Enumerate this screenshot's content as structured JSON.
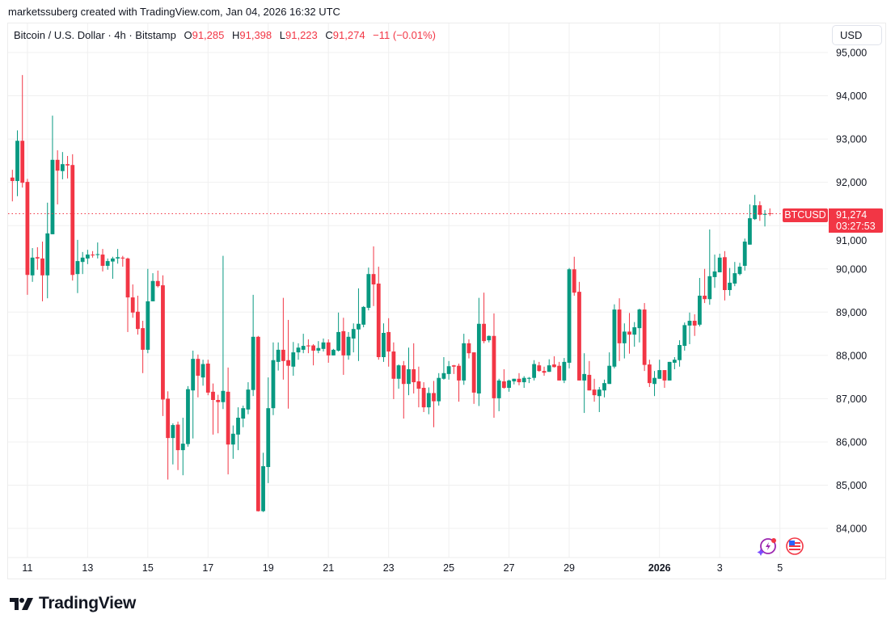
{
  "credit": "marketssuberg created with TradingView.com, Jan 04, 2026 16:32 UTC",
  "legend": {
    "title": "Bitcoin / U.S. Dollar · 4h · Bitstamp",
    "o_label": "O",
    "o": "91,285",
    "h_label": "H",
    "h": "91,398",
    "l_label": "L",
    "l": "91,223",
    "c_label": "C",
    "c": "91,274",
    "change": "−11 (−0.01%)"
  },
  "currency_button": "USD",
  "price_tag": {
    "symbol": "BTCUSD",
    "price": "91,274",
    "countdown": "03:27:53",
    "value": 91274
  },
  "branding": "TradingView",
  "icons": [
    "tradingview-logo-icon",
    "lightning-icon",
    "us-flag-icon"
  ],
  "colors": {
    "up": "#089981",
    "down": "#F23645",
    "grid": "#f0f0f0"
  },
  "chart_data": {
    "type": "candlestick",
    "interval": "4h",
    "first_candle": "2025-12-10T12:00:00Z",
    "y_ticks": [
      {
        "value": 95000,
        "label": "95,000"
      },
      {
        "value": 94000,
        "label": "94,000"
      },
      {
        "value": 93000,
        "label": "93,000"
      },
      {
        "value": 92000,
        "label": "92,000"
      },
      {
        "value": 91000,
        "label": "91,000"
      },
      {
        "value": 90000,
        "label": "90,000"
      },
      {
        "value": 89000,
        "label": "89,000"
      },
      {
        "value": 88000,
        "label": "88,000"
      },
      {
        "value": 87000,
        "label": "87,000"
      },
      {
        "value": 86000,
        "label": "86,000"
      },
      {
        "value": 85000,
        "label": "85,000"
      },
      {
        "value": 84000,
        "label": "84,000"
      }
    ],
    "x_ticks": [
      {
        "date": "2025-12-11T00:00:00Z",
        "label": "11"
      },
      {
        "date": "2025-12-13T00:00:00Z",
        "label": "13"
      },
      {
        "date": "2025-12-15T00:00:00Z",
        "label": "15"
      },
      {
        "date": "2025-12-17T00:00:00Z",
        "label": "17"
      },
      {
        "date": "2025-12-19T00:00:00Z",
        "label": "19"
      },
      {
        "date": "2025-12-21T00:00:00Z",
        "label": "21"
      },
      {
        "date": "2025-12-23T00:00:00Z",
        "label": "23"
      },
      {
        "date": "2025-12-25T00:00:00Z",
        "label": "25"
      },
      {
        "date": "2025-12-27T00:00:00Z",
        "label": "27"
      },
      {
        "date": "2025-12-29T00:00:00Z",
        "label": "29"
      },
      {
        "date": "2026-01-01T00:00:00Z",
        "label": "2026",
        "bold": true
      },
      {
        "date": "2026-01-03T00:00:00Z",
        "label": "3"
      },
      {
        "date": "2026-01-05T00:00:00Z",
        "label": "5"
      }
    ],
    "ohlc_fields": [
      "open",
      "high",
      "low",
      "close"
    ],
    "candles": [
      [
        92110,
        92290,
        91560,
        92030
      ],
      [
        92030,
        93200,
        91680,
        92960
      ],
      [
        92960,
        94480,
        91880,
        91990
      ],
      [
        92010,
        92080,
        89400,
        89860
      ],
      [
        89850,
        90480,
        89700,
        90260
      ],
      [
        90270,
        90500,
        89980,
        90240
      ],
      [
        90240,
        90630,
        89250,
        89850
      ],
      [
        89850,
        91530,
        89320,
        90820
      ],
      [
        90800,
        93540,
        90800,
        92520
      ],
      [
        92520,
        92740,
        91490,
        92270
      ],
      [
        92260,
        92700,
        92070,
        92420
      ],
      [
        92420,
        92610,
        92090,
        92390
      ],
      [
        92400,
        92650,
        89730,
        89860
      ],
      [
        89880,
        90670,
        89440,
        90180
      ],
      [
        90160,
        90390,
        89880,
        90260
      ],
      [
        90240,
        90440,
        90110,
        90330
      ],
      [
        90330,
        90410,
        90260,
        90310
      ],
      [
        90320,
        90610,
        90240,
        90340
      ],
      [
        90330,
        90460,
        89940,
        90070
      ],
      [
        90070,
        90240,
        89980,
        90180
      ],
      [
        90170,
        90280,
        89770,
        90240
      ],
      [
        90240,
        90460,
        90120,
        90270
      ],
      [
        90260,
        90300,
        90050,
        90240
      ],
      [
        90240,
        90260,
        88540,
        89340
      ],
      [
        89340,
        89640,
        88870,
        88990
      ],
      [
        89010,
        89380,
        88480,
        88610
      ],
      [
        88630,
        88800,
        87590,
        88130
      ],
      [
        88130,
        90000,
        88050,
        89250
      ],
      [
        89250,
        89900,
        89250,
        89720
      ],
      [
        89720,
        89960,
        89570,
        89600
      ],
      [
        89620,
        89850,
        86600,
        86980
      ],
      [
        87000,
        87170,
        85130,
        86090
      ],
      [
        86090,
        86430,
        85480,
        86390
      ],
      [
        86400,
        86470,
        85350,
        85810
      ],
      [
        85810,
        86560,
        85230,
        85960
      ],
      [
        85950,
        87290,
        85890,
        87220
      ],
      [
        87190,
        88110,
        86080,
        87920
      ],
      [
        87920,
        88020,
        87030,
        87530
      ],
      [
        87490,
        87900,
        87300,
        87800
      ],
      [
        87810,
        87900,
        87080,
        87140
      ],
      [
        87160,
        87350,
        86170,
        86970
      ],
      [
        86970,
        87090,
        86200,
        86920
      ],
      [
        86920,
        90300,
        86760,
        87180
      ],
      [
        87160,
        87720,
        85250,
        85940
      ],
      [
        85940,
        86380,
        85610,
        86190
      ],
      [
        86170,
        86800,
        85810,
        86560
      ],
      [
        86540,
        86840,
        86340,
        86780
      ],
      [
        86750,
        87380,
        86640,
        87210
      ],
      [
        87200,
        89400,
        87060,
        88430
      ],
      [
        88430,
        88450,
        84390,
        84400
      ],
      [
        84400,
        85750,
        84380,
        85440
      ],
      [
        85420,
        87490,
        85050,
        86780
      ],
      [
        86780,
        88300,
        86620,
        87890
      ],
      [
        87850,
        88300,
        87650,
        88130
      ],
      [
        88130,
        89330,
        87440,
        87870
      ],
      [
        87890,
        88820,
        86770,
        87760
      ],
      [
        87740,
        88310,
        87530,
        88070
      ],
      [
        88070,
        88280,
        87900,
        88180
      ],
      [
        88130,
        88500,
        88050,
        88220
      ],
      [
        88230,
        88370,
        88050,
        88210
      ],
      [
        88230,
        88260,
        87770,
        88110
      ],
      [
        88110,
        88330,
        88050,
        88170
      ],
      [
        88150,
        88390,
        88090,
        88300
      ],
      [
        88300,
        88370,
        87830,
        88000
      ],
      [
        88000,
        88150,
        88000,
        88130
      ],
      [
        88110,
        88990,
        88090,
        88540
      ],
      [
        88560,
        88870,
        87550,
        88000
      ],
      [
        88000,
        88540,
        87900,
        88430
      ],
      [
        88390,
        88740,
        88070,
        88610
      ],
      [
        88600,
        89550,
        87870,
        88730
      ],
      [
        88710,
        89140,
        88650,
        89120
      ],
      [
        89100,
        90030,
        89040,
        89880
      ],
      [
        89880,
        90520,
        89140,
        89640
      ],
      [
        89660,
        90050,
        87900,
        87960
      ],
      [
        87960,
        88740,
        87850,
        88520
      ],
      [
        88540,
        88860,
        87740,
        88090
      ],
      [
        88090,
        88300,
        86990,
        87460
      ],
      [
        87460,
        87790,
        87230,
        87770
      ],
      [
        87770,
        87870,
        86540,
        87340
      ],
      [
        87340,
        88180,
        87080,
        87680
      ],
      [
        87680,
        88280,
        87120,
        87380
      ],
      [
        87400,
        87740,
        86800,
        87230
      ],
      [
        87250,
        87380,
        86690,
        86800
      ],
      [
        86800,
        87260,
        86640,
        87130
      ],
      [
        87130,
        87410,
        86340,
        86940
      ],
      [
        86940,
        87590,
        86840,
        87480
      ],
      [
        87460,
        87960,
        87440,
        87590
      ],
      [
        87570,
        87870,
        87440,
        87750
      ],
      [
        87770,
        87780,
        87570,
        87740
      ],
      [
        87760,
        87810,
        86930,
        87420
      ],
      [
        87420,
        88500,
        87320,
        88280
      ],
      [
        88280,
        88370,
        87930,
        88050
      ],
      [
        88070,
        88070,
        86880,
        87140
      ],
      [
        87120,
        89330,
        86830,
        88730
      ],
      [
        88730,
        89450,
        88280,
        88330
      ],
      [
        88350,
        88460,
        88300,
        88450
      ],
      [
        88450,
        88970,
        86560,
        87010
      ],
      [
        87010,
        87460,
        86710,
        87420
      ],
      [
        87400,
        87680,
        87230,
        87250
      ],
      [
        87250,
        87440,
        87160,
        87420
      ],
      [
        87400,
        87460,
        87330,
        87460
      ],
      [
        87460,
        87590,
        87310,
        87380
      ],
      [
        87380,
        87520,
        87250,
        87480
      ],
      [
        87460,
        87500,
        87360,
        87480
      ],
      [
        87480,
        87890,
        87420,
        87800
      ],
      [
        87770,
        87850,
        87620,
        87640
      ],
      [
        87640,
        87740,
        87530,
        87600
      ],
      [
        87620,
        87910,
        87620,
        87770
      ],
      [
        87790,
        87980,
        87720,
        87730
      ],
      [
        87760,
        87850,
        87420,
        87420
      ],
      [
        87420,
        87940,
        87360,
        87850
      ],
      [
        87830,
        90020,
        87700,
        89990
      ],
      [
        89990,
        90280,
        89380,
        89450
      ],
      [
        89470,
        89700,
        87420,
        87420
      ],
      [
        87420,
        88050,
        86670,
        87570
      ],
      [
        87550,
        87870,
        87190,
        87190
      ],
      [
        87210,
        87460,
        86930,
        87080
      ],
      [
        87060,
        87270,
        86690,
        87210
      ],
      [
        87190,
        87440,
        87030,
        87360
      ],
      [
        87340,
        88070,
        87340,
        87760
      ],
      [
        87740,
        89180,
        87700,
        89060
      ],
      [
        89060,
        89320,
        87870,
        88280
      ],
      [
        88280,
        88740,
        87930,
        88550
      ],
      [
        88550,
        88980,
        88040,
        88480
      ],
      [
        88480,
        88770,
        88200,
        88650
      ],
      [
        88630,
        89080,
        88300,
        89060
      ],
      [
        89060,
        89210,
        87640,
        87780
      ],
      [
        87790,
        87900,
        87270,
        87360
      ],
      [
        87340,
        87640,
        87060,
        87480
      ],
      [
        87460,
        87900,
        87460,
        87660
      ],
      [
        87660,
        87660,
        87250,
        87420
      ],
      [
        87420,
        87850,
        87420,
        87850
      ],
      [
        87830,
        87960,
        87680,
        87900
      ],
      [
        87890,
        88350,
        87740,
        88240
      ],
      [
        88220,
        88760,
        88110,
        88700
      ],
      [
        88690,
        88990,
        88260,
        88800
      ],
      [
        88800,
        88950,
        88450,
        88690
      ],
      [
        88710,
        89790,
        88670,
        89380
      ],
      [
        89380,
        90000,
        89210,
        89300
      ],
      [
        89300,
        90910,
        89170,
        89830
      ],
      [
        89810,
        90330,
        89560,
        89940
      ],
      [
        89920,
        90350,
        89920,
        90260
      ],
      [
        90270,
        90410,
        89270,
        89510
      ],
      [
        89510,
        90020,
        89380,
        89680
      ],
      [
        89660,
        90160,
        89600,
        89900
      ],
      [
        89880,
        90140,
        89850,
        90050
      ],
      [
        90070,
        90700,
        89960,
        90630
      ],
      [
        90560,
        91490,
        90560,
        91170
      ],
      [
        91150,
        91710,
        91130,
        91470
      ],
      [
        91470,
        91560,
        91110,
        91250
      ],
      [
        91250,
        91360,
        90980,
        91270
      ],
      [
        91285,
        91398,
        91223,
        91274
      ]
    ]
  }
}
